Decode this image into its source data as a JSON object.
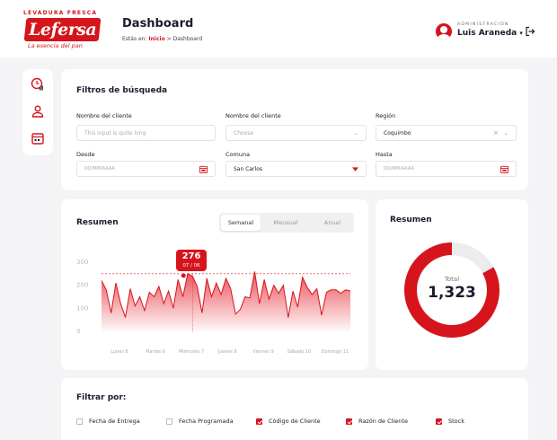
{
  "brand": {
    "tagline_top": "LEVADURA FRESCA",
    "name": "Lefersa",
    "subtitle": "La esencia del pan"
  },
  "header": {
    "title": "Dashboard",
    "breadcrumb_prefix": "Estás en:",
    "breadcrumb_link": "Inicio",
    "breadcrumb_current": "Dashboard"
  },
  "user": {
    "role": "ADMINISTRACIÓN",
    "name": "Luis Araneda",
    "dropdown_glyph": "▾"
  },
  "sidebar": {
    "icons": [
      "chart-clock-icon",
      "user-icon",
      "calendar-icon"
    ]
  },
  "filters": {
    "title": "Filtros de búsqueda",
    "client_label": "Nombre del cliente",
    "client_placeholder": "This input is quite long",
    "client2_label": "Nombre del cliente",
    "client2_placeholder": "Choose",
    "region_label": "Región",
    "region_value": "Coquimbo",
    "from_label": "Desde",
    "from_placeholder": "DD/MM/AAAA",
    "commune_label": "Comuna",
    "commune_value": "San Carlos",
    "to_label": "Hasta",
    "to_placeholder": "DD/MM/AAAA"
  },
  "summary": {
    "title": "Resumen",
    "tabs": [
      "Semanal",
      "Mensual",
      "Anual"
    ],
    "active_tab": "Semanal",
    "tooltip_value": "276",
    "tooltip_date": "07 / 06"
  },
  "chart_data": {
    "type": "area",
    "y_ticks": [
      "300",
      "200",
      "100",
      "0"
    ],
    "ylim": [
      0,
      350
    ],
    "x_labels": [
      "Lunes 6",
      "Martes 6",
      "Miércoles 7",
      "Jueves 8",
      "Viernes 9",
      "Sábado 10",
      "Domingo 11"
    ],
    "reference_line": 250,
    "color": "#e8323c",
    "values": [
      220,
      180,
      80,
      210,
      120,
      60,
      185,
      110,
      150,
      90,
      170,
      150,
      195,
      120,
      175,
      100,
      225,
      150,
      250,
      240,
      195,
      80,
      230,
      150,
      210,
      160,
      230,
      185,
      75,
      95,
      150,
      145,
      260,
      120,
      225,
      140,
      200,
      165,
      200,
      60,
      175,
      105,
      235,
      190,
      160,
      185,
      70,
      170,
      180,
      180,
      165,
      180,
      175
    ]
  },
  "donut": {
    "title": "Resumen",
    "center_label": "Total",
    "center_value": "1,323",
    "fraction": 0.83,
    "color": "#d6141c",
    "track_color": "#ececee"
  },
  "filter_by": {
    "title": "Filtrar por:",
    "options": [
      {
        "label": "Fecha de Entrega",
        "checked": false
      },
      {
        "label": "Fecha Programada",
        "checked": false
      },
      {
        "label": "Código de Cliente",
        "checked": true
      },
      {
        "label": "Razón de Cliente",
        "checked": true
      },
      {
        "label": "Stock",
        "checked": true
      }
    ]
  }
}
